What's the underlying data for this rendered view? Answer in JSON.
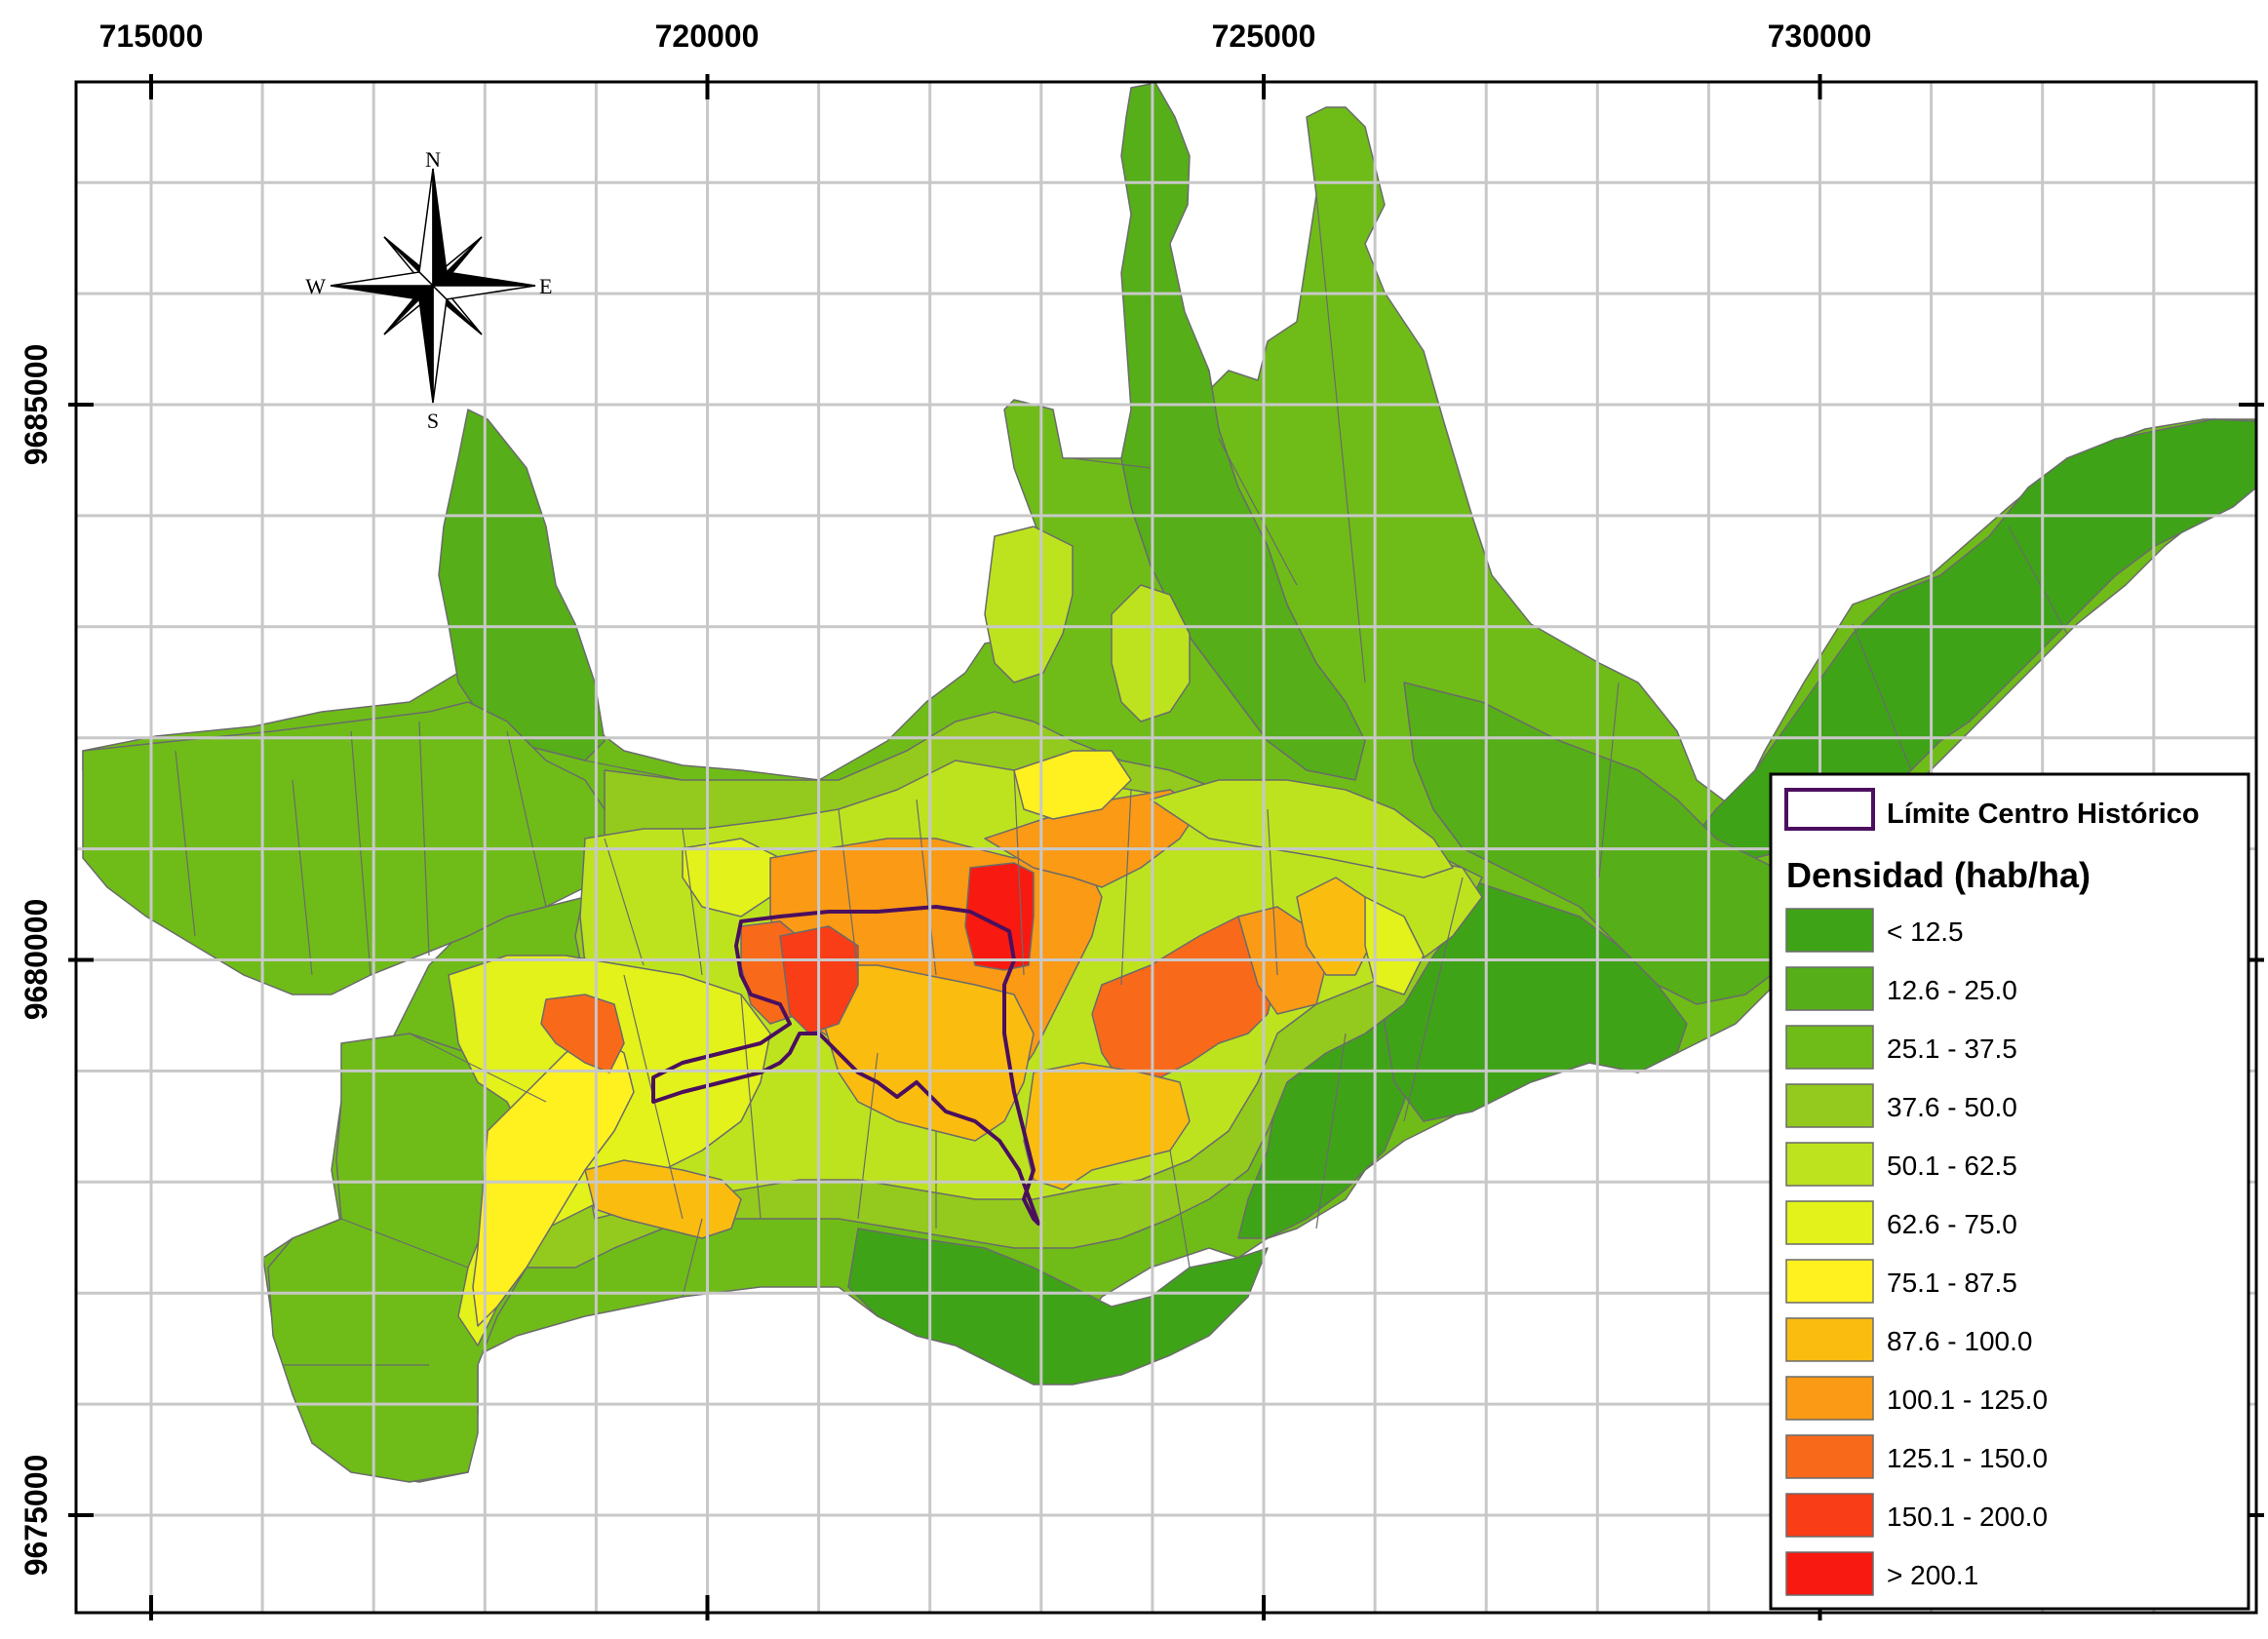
{
  "map": {
    "x_ticks": [
      "715000",
      "720000",
      "725000",
      "730000"
    ],
    "y_ticks": [
      "9685000",
      "9680000",
      "9675000"
    ],
    "compass": {
      "north": "N",
      "south": "S",
      "east": "E",
      "west": "W"
    },
    "legend": {
      "boundary_label": "Límite Centro Histórico",
      "boundary_color": "#4b0f5e",
      "title": "Densidad (hab/ha)",
      "classes": [
        {
          "label": "< 12.5",
          "color": "#3fa318"
        },
        {
          "label": "12.6 - 25.0",
          "color": "#56ae18"
        },
        {
          "label": "25.1 - 37.5",
          "color": "#6fbc19"
        },
        {
          "label": "37.6 - 50.0",
          "color": "#93ca1d"
        },
        {
          "label": "50.1 - 62.5",
          "color": "#bde31f"
        },
        {
          "label": "62.6 - 75.0",
          "color": "#e2f21a"
        },
        {
          "label": "75.1 - 87.5",
          "color": "#fff01f"
        },
        {
          "label": "87.6 - 100.0",
          "color": "#fbbc10"
        },
        {
          "label": "100.1 - 125.0",
          "color": "#fa9a15"
        },
        {
          "label": "125.1 - 150.0",
          "color": "#f86a1a"
        },
        {
          "label": "150.1 - 200.0",
          "color": "#f83d17"
        },
        {
          "label": "> 200.1",
          "color": "#f81a10"
        }
      ]
    }
  }
}
